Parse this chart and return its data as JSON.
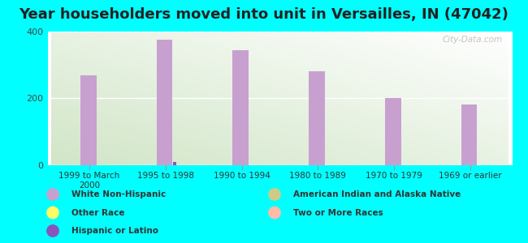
{
  "title": "Year householders moved into unit in Versailles, IN (47042)",
  "categories": [
    "1999 to March\n2000",
    "1995 to 1998",
    "1990 to 1994",
    "1980 to 1989",
    "1970 to 1979",
    "1969 or earlier"
  ],
  "series": {
    "White Non-Hispanic": [
      270,
      375,
      345,
      280,
      202,
      182
    ],
    "Other Race": [
      0,
      0,
      0,
      0,
      0,
      0
    ],
    "Hispanic or Latino": [
      0,
      10,
      0,
      0,
      0,
      0
    ],
    "American Indian and Alaska Native": [
      0,
      0,
      0,
      0,
      0,
      0
    ],
    "Two or More Races": [
      0,
      0,
      0,
      0,
      0,
      0
    ]
  },
  "colors": {
    "White Non-Hispanic": "#c8a0d0",
    "Other Race": "#ffff66",
    "Hispanic or Latino": "#8855bb",
    "American Indian and Alaska Native": "#cccc88",
    "Two or More Races": "#ffbbaa"
  },
  "ylim": [
    0,
    400
  ],
  "yticks": [
    0,
    200,
    400
  ],
  "background_color": "#00ffff",
  "title_fontsize": 13,
  "watermark": "City-Data.com",
  "bar_width": 0.25,
  "legend_items_left": [
    "White Non-Hispanic",
    "Other Race",
    "Hispanic or Latino"
  ],
  "legend_items_right": [
    "American Indian and Alaska Native",
    "Two or More Races"
  ]
}
